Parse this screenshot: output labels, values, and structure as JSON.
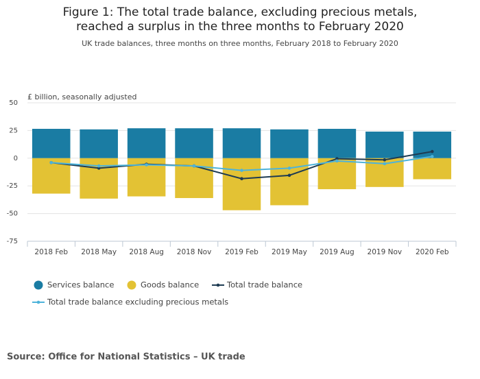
{
  "chart_data": {
    "type": "bar",
    "title": "Figure 1: The total trade balance, excluding precious metals, reached a surplus in the three months to February 2020",
    "subtitle": "UK trade balances, three months on three months, February 2018 to February 2020",
    "y_label": "£ billion, seasonally adjusted",
    "source": "Source: Office for National Statistics – UK trade",
    "categories": [
      "2018 Feb",
      "2018 May",
      "2018 Aug",
      "2018 Nov",
      "2019 Feb",
      "2019 May",
      "2019 Aug",
      "2019 Nov",
      "2020 Feb"
    ],
    "series": [
      {
        "name": "Services balance",
        "type": "bar",
        "color": "#1a7ca3",
        "values": [
          26.5,
          26,
          27,
          27,
          27,
          26,
          26.5,
          24,
          24
        ]
      },
      {
        "name": "Goods balance",
        "type": "bar",
        "color": "#e3c234",
        "values": [
          -32,
          -36.5,
          -34.5,
          -36,
          -47,
          -42.5,
          -28,
          -26,
          -19
        ]
      },
      {
        "name": "Total trade balance",
        "type": "line",
        "color": "#1e3b52",
        "values": [
          -4,
          -9,
          -5.5,
          -7,
          -18.5,
          -15.5,
          -0.5,
          -1.5,
          6
        ]
      },
      {
        "name": "Total trade balance excluding precious metals",
        "type": "line",
        "color": "#4db3da",
        "values": [
          -4,
          -7,
          -6,
          -7,
          -11,
          -9,
          -2.5,
          -5,
          1.5
        ]
      }
    ],
    "ylim": [
      -75,
      50
    ],
    "yticks": [
      -75,
      -50,
      -25,
      0,
      25,
      50
    ],
    "grid": true
  }
}
